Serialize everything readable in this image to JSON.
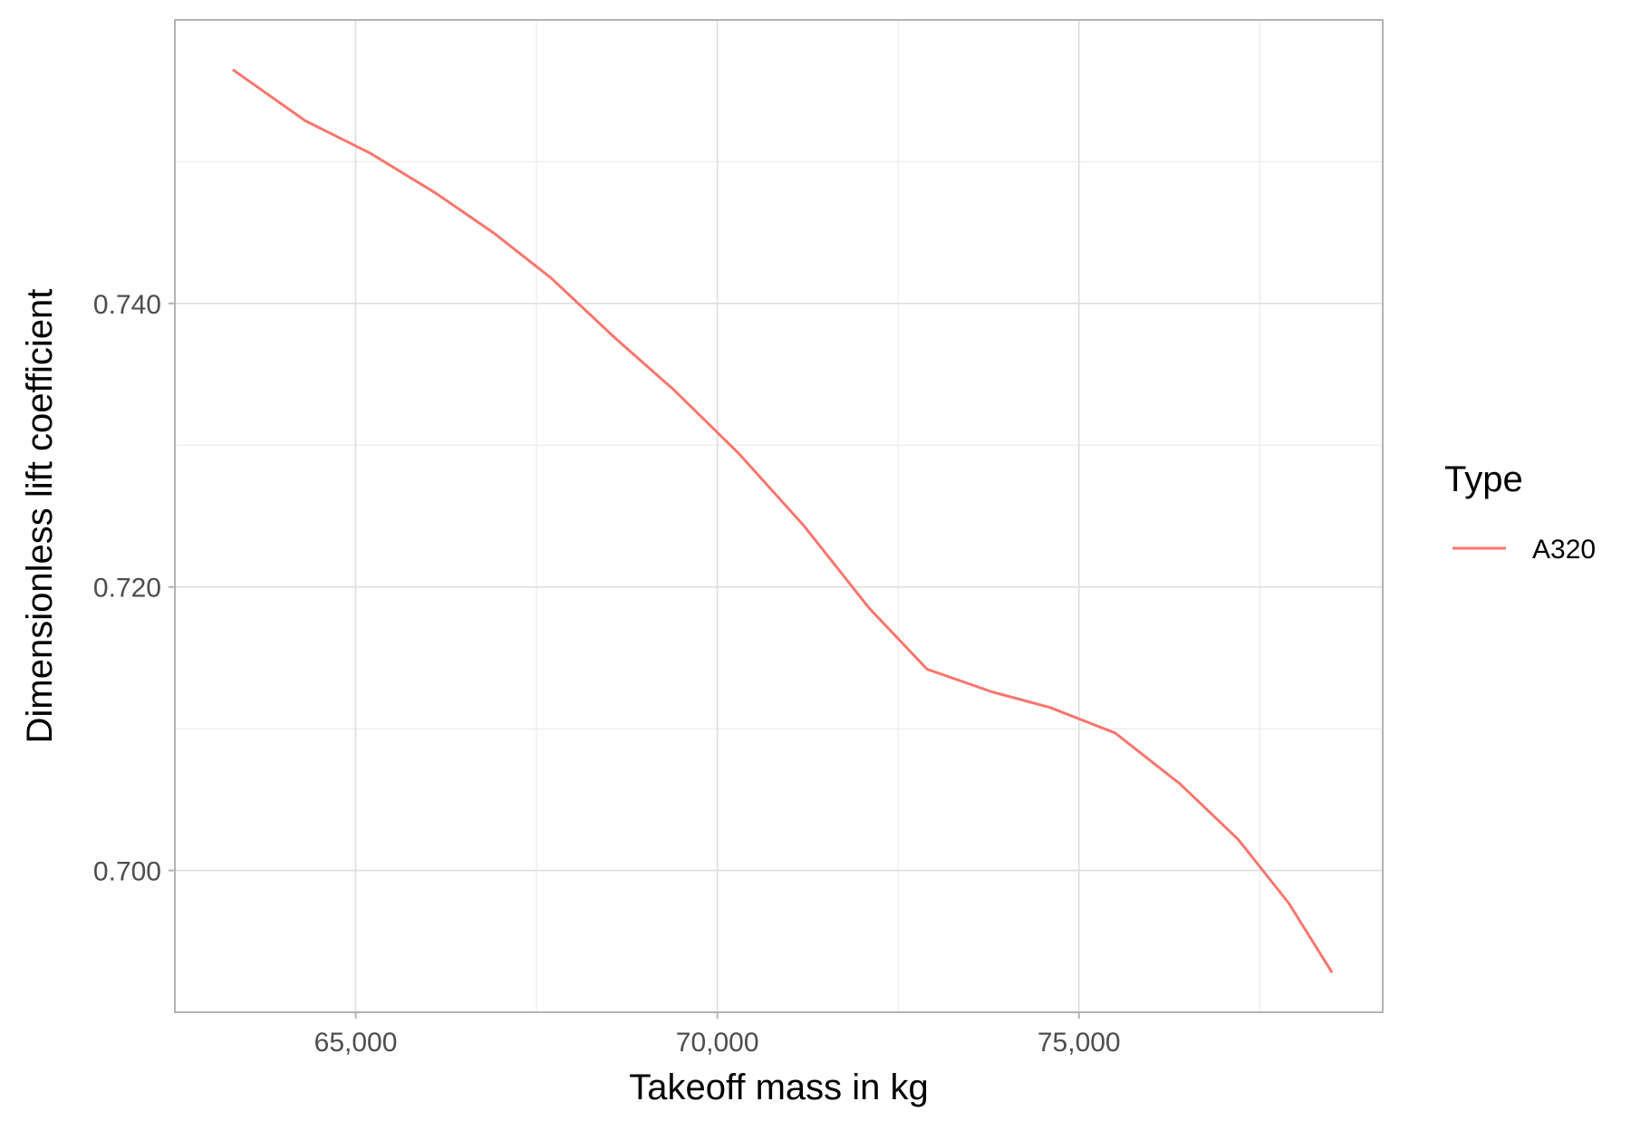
{
  "chart_data": {
    "type": "line",
    "title": "",
    "xlabel": "Takeoff mass in kg",
    "ylabel": "Dimensionless lift coefficient",
    "xlim": [
      62500,
      79200
    ],
    "ylim": [
      0.69,
      0.76
    ],
    "x_major_ticks": [
      65000,
      70000,
      75000
    ],
    "x_tick_labels": [
      "65,000",
      "70,000",
      "75,000"
    ],
    "x_minor_ticks": [
      62500,
      67500,
      72500,
      77500
    ],
    "y_major_ticks": [
      0.7,
      0.72,
      0.74
    ],
    "y_tick_labels": [
      "0.700",
      "0.720",
      "0.740"
    ],
    "y_minor_ticks": [
      0.69,
      0.71,
      0.73,
      0.75
    ],
    "grid": true,
    "legend": {
      "title": "Type",
      "position": "right"
    },
    "series": [
      {
        "name": "A320",
        "color": "#F8766D",
        "x": [
          63300,
          64300,
          65200,
          66100,
          66900,
          67700,
          68600,
          69400,
          70300,
          71200,
          72100,
          72900,
          73800,
          74600,
          75500,
          76400,
          77200,
          77900,
          78500
        ],
        "y": [
          0.7565,
          0.7529,
          0.7506,
          0.7478,
          0.745,
          0.7418,
          0.7375,
          0.7339,
          0.7294,
          0.7243,
          0.7185,
          0.7142,
          0.7126,
          0.7115,
          0.7097,
          0.7061,
          0.7022,
          0.6977,
          0.6928
        ]
      }
    ]
  }
}
